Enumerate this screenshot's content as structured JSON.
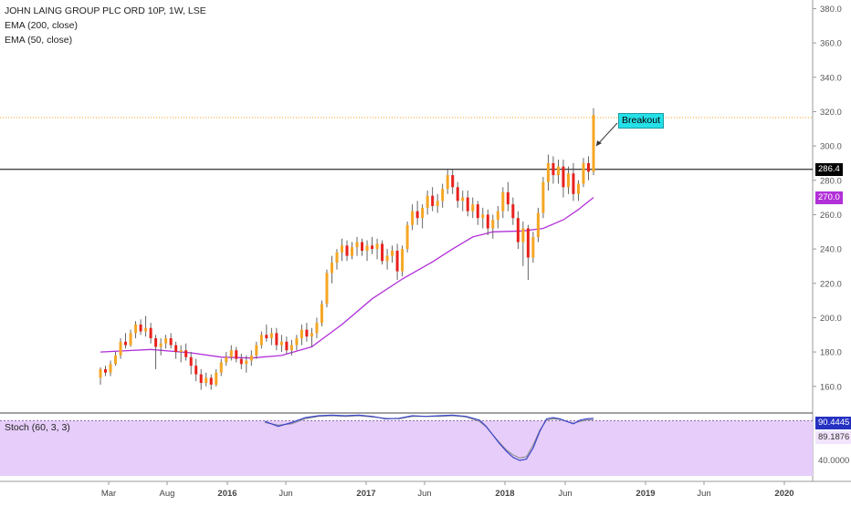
{
  "header": {
    "symbol_line": "JOHN LAING GROUP PLC ORD 10P, 1W, LSE",
    "indicator1": "EMA (200, close)",
    "indicator2": "EMA (50, close)"
  },
  "annotation": {
    "label": "Breakout"
  },
  "price_tags": {
    "last": "286.4",
    "ema": "270.0"
  },
  "stoch_panel": {
    "label": "Stoch (60, 3, 3)",
    "tag_k": "90.4445",
    "tag_d": "89.1876",
    "tick_40": "40.0000"
  },
  "colors": {
    "up": "#f5a623",
    "down": "#e8211d",
    "ema50": "#b230d8",
    "stoch_k": "#3a46c8",
    "stoch_fill": "#e6cdfa",
    "resistance": "#000000",
    "dotted_level": "#f5a623",
    "annotation_bg": "#26e0e8"
  },
  "chart_data": {
    "type": "candlestick",
    "title": "JOHN LAING GROUP PLC ORD 10P, 1W, LSE",
    "ylim": [
      145,
      385
    ],
    "y_ticks": [
      "380.0",
      "360.0",
      "340.0",
      "320.0",
      "300.0",
      "280.0",
      "260.0",
      "240.0",
      "220.0",
      "200.0",
      "180.0",
      "160.0"
    ],
    "x_ticks": [
      "Mar",
      "Aug",
      "2016",
      "Jun",
      "2017",
      "Jun",
      "2018",
      "Jun",
      "2019",
      "Jun",
      "2020"
    ],
    "resistance_level": 286.4,
    "dotted_level": 316.5,
    "ema50_last": 270.0,
    "candles": [
      [
        165,
        171,
        161,
        170
      ],
      [
        170,
        172,
        166,
        168
      ],
      [
        168,
        175,
        166,
        173
      ],
      [
        173,
        180,
        172,
        178
      ],
      [
        178,
        188,
        176,
        186
      ],
      [
        186,
        191,
        182,
        184
      ],
      [
        184,
        193,
        183,
        191
      ],
      [
        191,
        198,
        188,
        196
      ],
      [
        196,
        199,
        190,
        192
      ],
      [
        192,
        201,
        189,
        194
      ],
      [
        194,
        197,
        185,
        188
      ],
      [
        188,
        190,
        170,
        183
      ],
      [
        183,
        188,
        178,
        185
      ],
      [
        185,
        190,
        182,
        188
      ],
      [
        188,
        191,
        182,
        184
      ],
      [
        184,
        186,
        176,
        180
      ],
      [
        180,
        184,
        174,
        181
      ],
      [
        181,
        185,
        175,
        177
      ],
      [
        177,
        180,
        167,
        172
      ],
      [
        172,
        176,
        163,
        167
      ],
      [
        167,
        170,
        158,
        162
      ],
      [
        162,
        168,
        160,
        165
      ],
      [
        165,
        167,
        158,
        161
      ],
      [
        161,
        170,
        160,
        168
      ],
      [
        168,
        176,
        166,
        174
      ],
      [
        174,
        180,
        172,
        177
      ],
      [
        177,
        184,
        175,
        181
      ],
      [
        181,
        183,
        174,
        176
      ],
      [
        176,
        179,
        170,
        173
      ],
      [
        173,
        178,
        168,
        175
      ],
      [
        175,
        181,
        172,
        178
      ],
      [
        178,
        186,
        176,
        184
      ],
      [
        184,
        192,
        182,
        190
      ],
      [
        190,
        196,
        186,
        188
      ],
      [
        188,
        194,
        184,
        191
      ],
      [
        191,
        194,
        181,
        184
      ],
      [
        184,
        190,
        180,
        186
      ],
      [
        186,
        189,
        179,
        181
      ],
      [
        181,
        187,
        178,
        184
      ],
      [
        184,
        190,
        181,
        188
      ],
      [
        188,
        196,
        184,
        193
      ],
      [
        193,
        197,
        186,
        189
      ],
      [
        189,
        194,
        183,
        191
      ],
      [
        191,
        200,
        188,
        197
      ],
      [
        197,
        210,
        195,
        208
      ],
      [
        208,
        228,
        206,
        226
      ],
      [
        226,
        236,
        220,
        232
      ],
      [
        232,
        240,
        228,
        238
      ],
      [
        238,
        246,
        233,
        242
      ],
      [
        242,
        245,
        233,
        236
      ],
      [
        236,
        244,
        234,
        241
      ],
      [
        241,
        247,
        236,
        244
      ],
      [
        244,
        246,
        236,
        239
      ],
      [
        239,
        245,
        233,
        242
      ],
      [
        242,
        247,
        237,
        240
      ],
      [
        240,
        246,
        234,
        243
      ],
      [
        243,
        245,
        231,
        233
      ],
      [
        233,
        240,
        228,
        236
      ],
      [
        236,
        242,
        232,
        239
      ],
      [
        239,
        243,
        222,
        227
      ],
      [
        227,
        242,
        224,
        240
      ],
      [
        240,
        256,
        238,
        254
      ],
      [
        254,
        266,
        251,
        262
      ],
      [
        262,
        268,
        254,
        258
      ],
      [
        258,
        266,
        252,
        264
      ],
      [
        264,
        274,
        260,
        271
      ],
      [
        271,
        276,
        262,
        265
      ],
      [
        265,
        272,
        261,
        268
      ],
      [
        268,
        278,
        264,
        275
      ],
      [
        275,
        286,
        272,
        283
      ],
      [
        283,
        286,
        272,
        276
      ],
      [
        276,
        279,
        264,
        268
      ],
      [
        268,
        274,
        262,
        270
      ],
      [
        270,
        274,
        259,
        262
      ],
      [
        262,
        270,
        258,
        266
      ],
      [
        266,
        268,
        254,
        258
      ],
      [
        258,
        264,
        252,
        260
      ],
      [
        260,
        263,
        248,
        252
      ],
      [
        252,
        260,
        246,
        257
      ],
      [
        257,
        265,
        252,
        262
      ],
      [
        262,
        276,
        258,
        273
      ],
      [
        273,
        279,
        262,
        266
      ],
      [
        266,
        270,
        254,
        258
      ],
      [
        258,
        262,
        240,
        244
      ],
      [
        244,
        256,
        230,
        252
      ],
      [
        252,
        254,
        222,
        235
      ],
      [
        235,
        250,
        232,
        247
      ],
      [
        247,
        264,
        244,
        261
      ],
      [
        261,
        282,
        258,
        279
      ],
      [
        279,
        295,
        274,
        290
      ],
      [
        290,
        294,
        278,
        283
      ],
      [
        283,
        292,
        278,
        288
      ],
      [
        288,
        292,
        270,
        276
      ],
      [
        276,
        288,
        272,
        284
      ],
      [
        284,
        290,
        268,
        272
      ],
      [
        272,
        280,
        268,
        278
      ],
      [
        278,
        293,
        276,
        290
      ],
      [
        290,
        294,
        280,
        285
      ],
      [
        285,
        322,
        283,
        318
      ]
    ],
    "ema50": [
      [
        0,
        180
      ],
      [
        10,
        181.5
      ],
      [
        18,
        179.5
      ],
      [
        24,
        177
      ],
      [
        30,
        176.5
      ],
      [
        36,
        178
      ],
      [
        42,
        183
      ],
      [
        48,
        196
      ],
      [
        54,
        211
      ],
      [
        60,
        222.5
      ],
      [
        66,
        232.5
      ],
      [
        70,
        240
      ],
      [
        74,
        247
      ],
      [
        78,
        250
      ],
      [
        84,
        250.5
      ],
      [
        88,
        252
      ],
      [
        92,
        257
      ],
      [
        95,
        263
      ],
      [
        98,
        270
      ]
    ],
    "stoch": {
      "ylim": [
        0,
        100
      ],
      "k": [
        [
          0,
          88
        ],
        [
          4,
          80
        ],
        [
          8,
          86
        ],
        [
          12,
          94
        ],
        [
          16,
          97
        ],
        [
          20,
          98
        ],
        [
          24,
          97
        ],
        [
          28,
          98
        ],
        [
          32,
          96
        ],
        [
          36,
          92
        ],
        [
          40,
          93
        ],
        [
          44,
          97
        ],
        [
          48,
          96
        ],
        [
          52,
          97
        ],
        [
          56,
          98
        ],
        [
          60,
          96
        ],
        [
          64,
          90
        ],
        [
          66,
          80
        ],
        [
          68,
          66
        ],
        [
          70,
          52
        ],
        [
          72,
          40
        ],
        [
          74,
          30
        ],
        [
          76,
          25
        ],
        [
          78,
          27
        ],
        [
          80,
          45
        ],
        [
          82,
          72
        ],
        [
          84,
          92
        ],
        [
          86,
          94
        ],
        [
          88,
          92
        ],
        [
          90,
          88
        ],
        [
          92,
          84
        ],
        [
          94,
          90
        ],
        [
          96,
          92
        ],
        [
          98,
          93
        ]
      ],
      "d": [
        [
          0,
          86
        ],
        [
          4,
          82
        ],
        [
          8,
          84
        ],
        [
          12,
          92
        ],
        [
          16,
          96
        ],
        [
          20,
          97
        ],
        [
          24,
          96
        ],
        [
          28,
          97
        ],
        [
          32,
          95
        ],
        [
          36,
          93
        ],
        [
          40,
          92
        ],
        [
          44,
          96
        ],
        [
          48,
          96
        ],
        [
          52,
          96
        ],
        [
          56,
          97
        ],
        [
          60,
          95
        ],
        [
          64,
          88
        ],
        [
          66,
          79
        ],
        [
          68,
          66
        ],
        [
          70,
          54
        ],
        [
          72,
          42
        ],
        [
          74,
          34
        ],
        [
          76,
          29
        ],
        [
          78,
          31
        ],
        [
          80,
          50
        ],
        [
          82,
          74
        ],
        [
          84,
          90
        ],
        [
          86,
          92
        ],
        [
          88,
          91
        ],
        [
          90,
          88
        ],
        [
          92,
          85
        ],
        [
          94,
          88
        ],
        [
          96,
          90
        ],
        [
          98,
          91
        ]
      ],
      "level": 89.19
    }
  }
}
